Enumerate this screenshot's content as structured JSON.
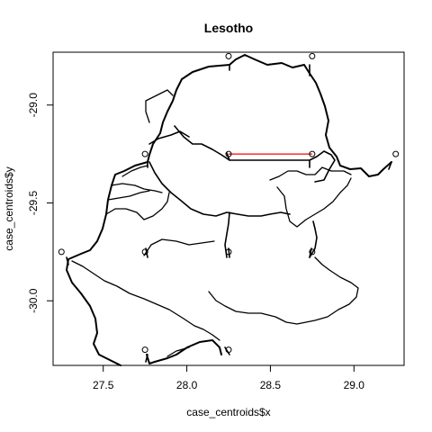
{
  "chart_data": {
    "type": "map",
    "title": "Lesotho",
    "xlabel": "case_centroids$x",
    "ylabel": "case_centroids$y",
    "xlim": [
      27.2,
      29.3
    ],
    "ylim": [
      -30.33,
      -28.73
    ],
    "xticks": [
      27.5,
      28.0,
      28.5,
      29.0
    ],
    "xtick_labels": [
      "27.5",
      "28.0",
      "28.5",
      "29.0"
    ],
    "yticks": [
      -29.0,
      -29.5,
      -30.0
    ],
    "ytick_labels": [
      "-29.0",
      "-29.5",
      "-30.0"
    ],
    "points": [
      {
        "x": 28.25,
        "y": -28.75
      },
      {
        "x": 28.75,
        "y": -28.75
      },
      {
        "x": 27.75,
        "y": -29.25
      },
      {
        "x": 28.25,
        "y": -29.25
      },
      {
        "x": 28.75,
        "y": -29.25
      },
      {
        "x": 29.25,
        "y": -29.25
      },
      {
        "x": 27.25,
        "y": -29.75
      },
      {
        "x": 27.75,
        "y": -29.75
      },
      {
        "x": 28.25,
        "y": -29.75
      },
      {
        "x": 28.75,
        "y": -29.75
      },
      {
        "x": 27.75,
        "y": -30.25
      },
      {
        "x": 28.25,
        "y": -30.25
      }
    ],
    "highlight_segment": {
      "x": [
        28.25,
        28.75
      ],
      "y": [
        -29.25,
        -29.25
      ],
      "color": "#ff0000"
    },
    "line_color": "#000000"
  }
}
